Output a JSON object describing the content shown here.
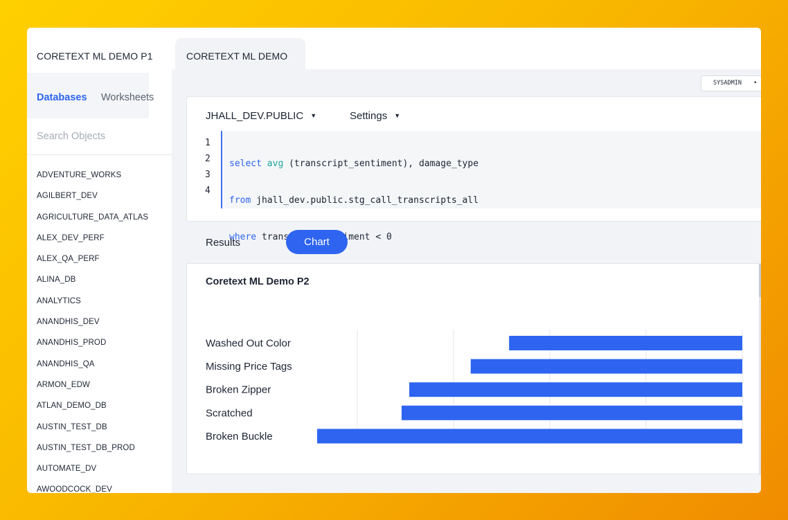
{
  "tabs": [
    "CORETEXT ML DEMO P1",
    "CORETEXT ML DEMO P2"
  ],
  "sidebar": {
    "tabs": [
      "Databases",
      "Worksheets"
    ],
    "search_placeholder": "Search Objects",
    "databases": [
      "ADVENTURE_WORKS",
      "AGILBERT_DEV",
      "AGRICULTURE_DATA_ATLAS",
      "ALEX_DEV_PERF",
      "ALEX_QA_PERF",
      "ALINA_DB",
      "ANALYTICS",
      "ANANDHIS_DEV",
      "ANANDHIS_PROD",
      "ANANDHIS_QA",
      "ARMON_EDW",
      "ATLAN_DEMO_DB",
      "AUSTIN_TEST_DB",
      "AUSTIN_TEST_DB_PROD",
      "AUTOMATE_DV",
      "AWOODCOCK_DEV"
    ]
  },
  "toolbar": {
    "role": "SYSADMIN",
    "role_caret": "•"
  },
  "editor": {
    "database": "JHALL_DEV.PUBLIC",
    "settings": "Settings",
    "caret": "▼",
    "line_numbers": [
      "1",
      "2",
      "3",
      "4"
    ]
  },
  "results": {
    "results_tab": "Results",
    "chart_tab": "Chart"
  },
  "chart": {
    "title": "Coretext ML Demo P2"
  },
  "colors": {
    "accent": "#2e64f0",
    "bar": "#2e64f0",
    "background_gradient": [
      "#ffd000",
      "#f08c00"
    ]
  },
  "chart_data": {
    "type": "bar",
    "orientation": "horizontal",
    "title": "Coretext ML Demo P2",
    "categories": [
      "Washed Out Color",
      "Missing Price Tags",
      "Broken Zipper",
      "Scratched",
      "Broken Buckle"
    ],
    "values": [
      -0.243,
      -0.283,
      -0.347,
      -0.355,
      -0.443
    ],
    "xlim": [
      -0.443,
      0
    ],
    "grid": true
  }
}
